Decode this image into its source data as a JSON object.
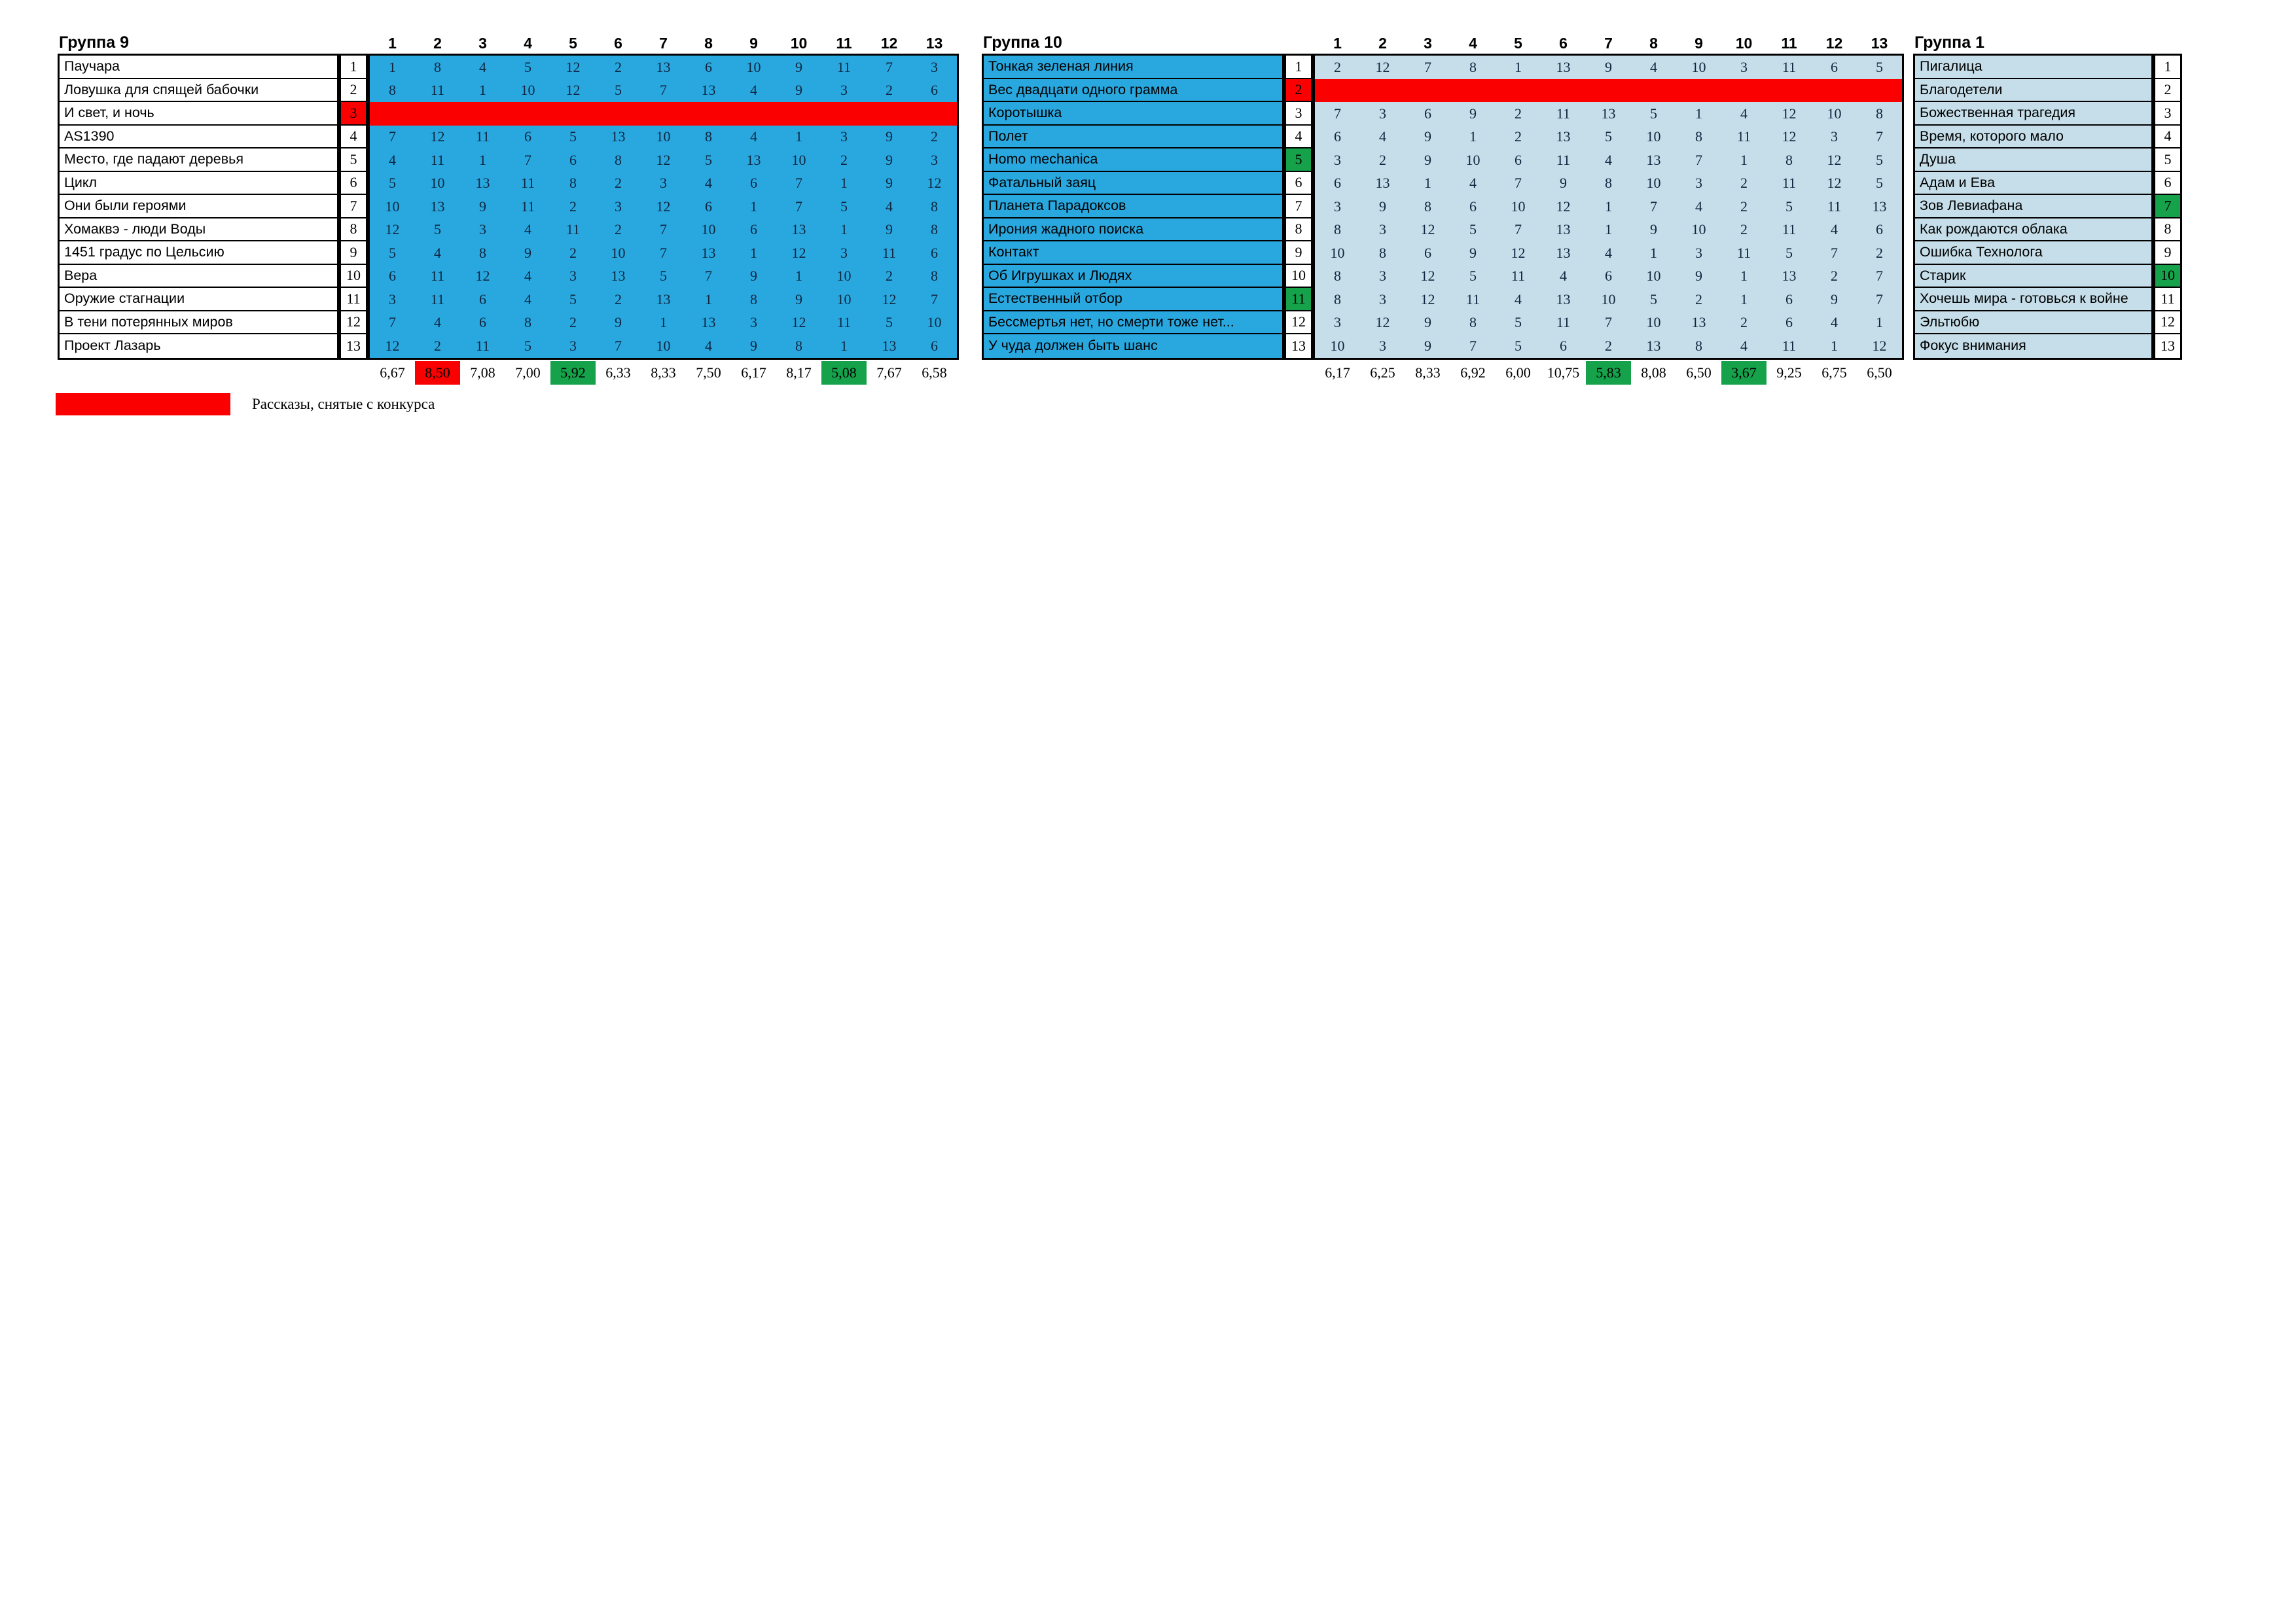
{
  "colors": {
    "bright_blue": "#29A8E0",
    "light_blue": "#C5DEE9",
    "red": "#FB0000",
    "green": "#15A24B",
    "white": "#FFFFFF",
    "digit_navy": "#10253F",
    "border": "#000000"
  },
  "score_columns": [
    "1",
    "2",
    "3",
    "4",
    "5",
    "6",
    "7",
    "8",
    "9",
    "10",
    "11",
    "12",
    "13"
  ],
  "legend": {
    "label": "Рассказы, снятые с конкурса",
    "swatch_color": "red"
  },
  "groups": [
    {
      "title": "Группа 9",
      "names_bg": "white",
      "matrix_bg": "bright_blue",
      "stories": [
        {
          "num": "1",
          "title": "Паучара",
          "flag": null,
          "scores": [
            1,
            8,
            4,
            5,
            12,
            2,
            13,
            6,
            10,
            9,
            11,
            7,
            3
          ]
        },
        {
          "num": "2",
          "title": "Ловушка для спящей бабочки",
          "flag": null,
          "scores": [
            8,
            11,
            1,
            10,
            12,
            5,
            7,
            13,
            4,
            9,
            3,
            2,
            6
          ]
        },
        {
          "num": "3",
          "title": "И свет, и ночь",
          "flag": "withdrawn",
          "scores": []
        },
        {
          "num": "4",
          "title": "AS1390",
          "flag": null,
          "scores": [
            7,
            12,
            11,
            6,
            5,
            13,
            10,
            8,
            4,
            1,
            3,
            9,
            2
          ]
        },
        {
          "num": "5",
          "title": "Место, где падают деревья",
          "flag": null,
          "scores": [
            4,
            11,
            1,
            7,
            6,
            8,
            12,
            5,
            13,
            10,
            2,
            9,
            3
          ]
        },
        {
          "num": "6",
          "title": "Цикл",
          "flag": null,
          "scores": [
            5,
            10,
            13,
            11,
            8,
            2,
            3,
            4,
            6,
            7,
            1,
            9,
            12
          ]
        },
        {
          "num": "7",
          "title": "Они были героями",
          "flag": null,
          "scores": [
            10,
            13,
            9,
            11,
            2,
            3,
            12,
            6,
            1,
            7,
            5,
            4,
            8
          ]
        },
        {
          "num": "8",
          "title": "Хомаквэ - люди Воды",
          "flag": null,
          "scores": [
            12,
            5,
            3,
            4,
            11,
            2,
            7,
            10,
            6,
            13,
            1,
            9,
            8
          ]
        },
        {
          "num": "9",
          "title": "1451 градус по Цельсию",
          "flag": null,
          "scores": [
            5,
            4,
            8,
            9,
            2,
            10,
            7,
            13,
            1,
            12,
            3,
            11,
            6
          ]
        },
        {
          "num": "10",
          "title": "Вера",
          "flag": null,
          "scores": [
            6,
            11,
            12,
            4,
            3,
            13,
            5,
            7,
            9,
            1,
            10,
            2,
            8
          ]
        },
        {
          "num": "11",
          "title": "Оружие стагнации",
          "flag": null,
          "scores": [
            3,
            11,
            6,
            4,
            5,
            2,
            13,
            1,
            8,
            9,
            10,
            12,
            7
          ]
        },
        {
          "num": "12",
          "title": "В тени потерянных миров",
          "flag": null,
          "scores": [
            7,
            4,
            6,
            8,
            2,
            9,
            1,
            13,
            3,
            12,
            11,
            5,
            10
          ]
        },
        {
          "num": "13",
          "title": "Проект Лазарь",
          "flag": null,
          "scores": [
            12,
            2,
            11,
            5,
            3,
            7,
            10,
            4,
            9,
            8,
            1,
            13,
            6
          ]
        }
      ],
      "averages": [
        {
          "value": "6,67",
          "highlight": null
        },
        {
          "value": "8,50",
          "highlight": "red"
        },
        {
          "value": "7,08",
          "highlight": null
        },
        {
          "value": "7,00",
          "highlight": null
        },
        {
          "value": "5,92",
          "highlight": "green"
        },
        {
          "value": "6,33",
          "highlight": null
        },
        {
          "value": "8,33",
          "highlight": null
        },
        {
          "value": "7,50",
          "highlight": null
        },
        {
          "value": "6,17",
          "highlight": null
        },
        {
          "value": "8,17",
          "highlight": null
        },
        {
          "value": "5,08",
          "highlight": "green"
        },
        {
          "value": "7,67",
          "highlight": null
        },
        {
          "value": "6,58",
          "highlight": null
        }
      ]
    },
    {
      "title": "Группа 10",
      "names_bg": "bright_blue",
      "matrix_bg": "light_blue",
      "stories": [
        {
          "num": "1",
          "title": "Тонкая зеленая линия",
          "flag": null,
          "scores": [
            2,
            12,
            7,
            8,
            1,
            13,
            9,
            4,
            10,
            3,
            11,
            6,
            5
          ]
        },
        {
          "num": "2",
          "title": "Вес двадцати одного грамма",
          "flag": "withdrawn",
          "scores": []
        },
        {
          "num": "3",
          "title": "Коротышка",
          "flag": null,
          "scores": [
            7,
            3,
            6,
            9,
            2,
            11,
            13,
            5,
            1,
            4,
            12,
            10,
            8
          ]
        },
        {
          "num": "4",
          "title": "Полет",
          "flag": null,
          "scores": [
            6,
            4,
            9,
            1,
            2,
            13,
            5,
            10,
            8,
            11,
            12,
            3,
            7
          ]
        },
        {
          "num": "5",
          "title": "Homo mechanica",
          "flag": "green",
          "scores": [
            3,
            2,
            9,
            10,
            6,
            11,
            4,
            13,
            7,
            1,
            8,
            12,
            5
          ]
        },
        {
          "num": "6",
          "title": "Фатальный заяц",
          "flag": null,
          "scores": [
            6,
            13,
            1,
            4,
            7,
            9,
            8,
            10,
            3,
            2,
            11,
            12,
            5
          ]
        },
        {
          "num": "7",
          "title": "Планета Парадоксов",
          "flag": null,
          "scores": [
            3,
            9,
            8,
            6,
            10,
            12,
            1,
            7,
            4,
            2,
            5,
            11,
            13
          ]
        },
        {
          "num": "8",
          "title": "Ирония жадного поиска",
          "flag": null,
          "scores": [
            8,
            3,
            12,
            5,
            7,
            13,
            1,
            9,
            10,
            2,
            11,
            4,
            6
          ]
        },
        {
          "num": "9",
          "title": "Контакт",
          "flag": null,
          "scores": [
            10,
            8,
            6,
            9,
            12,
            13,
            4,
            1,
            3,
            11,
            5,
            7,
            2
          ]
        },
        {
          "num": "10",
          "title": "Об Игрушках и Людях",
          "flag": null,
          "scores": [
            8,
            3,
            12,
            5,
            11,
            4,
            6,
            10,
            9,
            1,
            13,
            2,
            7
          ]
        },
        {
          "num": "11",
          "title": "Естественный отбор",
          "flag": "green",
          "scores": [
            8,
            3,
            12,
            11,
            4,
            13,
            10,
            5,
            2,
            1,
            6,
            9,
            7
          ]
        },
        {
          "num": "12",
          "title": "Бессмертья нет, но смерти тоже нет...",
          "flag": null,
          "scores": [
            3,
            12,
            9,
            8,
            5,
            11,
            7,
            10,
            13,
            2,
            6,
            4,
            1
          ]
        },
        {
          "num": "13",
          "title": "У чуда должен быть шанс",
          "flag": null,
          "scores": [
            10,
            3,
            9,
            7,
            5,
            6,
            2,
            13,
            8,
            4,
            11,
            1,
            12
          ]
        }
      ],
      "averages": [
        {
          "value": "6,17",
          "highlight": null
        },
        {
          "value": "6,25",
          "highlight": null
        },
        {
          "value": "8,33",
          "highlight": null
        },
        {
          "value": "6,92",
          "highlight": null
        },
        {
          "value": "6,00",
          "highlight": null
        },
        {
          "value": "10,75",
          "highlight": null
        },
        {
          "value": "5,83",
          "highlight": "green"
        },
        {
          "value": "8,08",
          "highlight": null
        },
        {
          "value": "6,50",
          "highlight": null
        },
        {
          "value": "3,67",
          "highlight": "green"
        },
        {
          "value": "9,25",
          "highlight": null
        },
        {
          "value": "6,75",
          "highlight": null
        },
        {
          "value": "6,50",
          "highlight": null
        }
      ]
    },
    {
      "title": "Группа 1",
      "names_bg": "light_blue",
      "matrix_bg": null,
      "stories": [
        {
          "num": "1",
          "title": "Пигалица",
          "flag": null
        },
        {
          "num": "2",
          "title": "Благодетели",
          "flag": null
        },
        {
          "num": "3",
          "title": "Божественная трагедия",
          "flag": null
        },
        {
          "num": "4",
          "title": "Время, которого мало",
          "flag": null
        },
        {
          "num": "5",
          "title": "Душа",
          "flag": null
        },
        {
          "num": "6",
          "title": "Адам и Ева",
          "flag": null
        },
        {
          "num": "7",
          "title": "Зов Левиафана",
          "flag": "green"
        },
        {
          "num": "8",
          "title": "Как рождаются облака",
          "flag": null
        },
        {
          "num": "9",
          "title": "Ошибка Технолога",
          "flag": null
        },
        {
          "num": "10",
          "title": "Старик",
          "flag": "green"
        },
        {
          "num": "11",
          "title": "Хочешь мира - готовься к войне",
          "flag": null
        },
        {
          "num": "12",
          "title": "Эльтюбю",
          "flag": null
        },
        {
          "num": "13",
          "title": "Фокус внимания",
          "flag": null
        }
      ],
      "averages": null
    }
  ]
}
